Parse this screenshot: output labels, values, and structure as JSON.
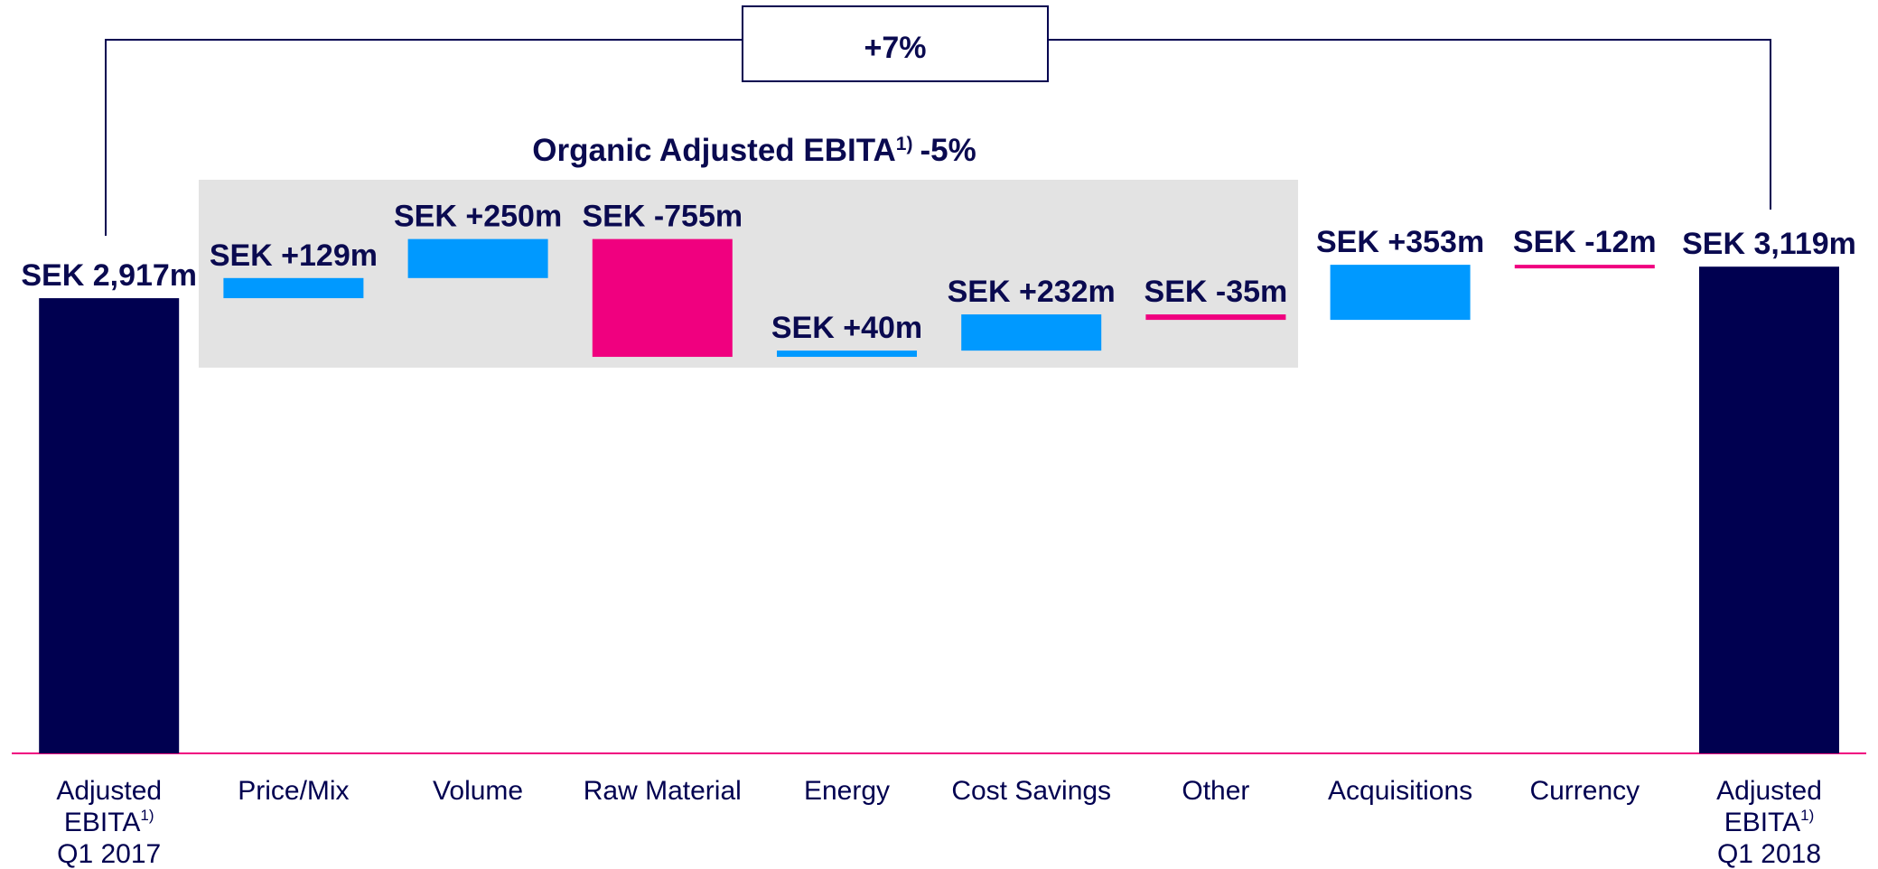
{
  "chart_data": {
    "type": "waterfall",
    "annotations": {
      "total_change": "+7%",
      "organic_label": "Organic Adjusted EBITA",
      "organic_note": "1)",
      "organic_change": "-5%"
    },
    "categories": [
      [
        "Adjusted",
        "EBITA",
        "Q1 2017"
      ],
      [
        "Price/Mix"
      ],
      [
        "Volume"
      ],
      [
        "Raw Material"
      ],
      [
        "Energy"
      ],
      [
        "Cost Savings"
      ],
      [
        "Other"
      ],
      [
        "Acquisitions"
      ],
      [
        "Currency"
      ],
      [
        "Adjusted",
        "EBITA",
        "Q1 2018"
      ]
    ],
    "category_notes": [
      "1)",
      null,
      null,
      null,
      null,
      null,
      null,
      null,
      null,
      "1)"
    ],
    "values": [
      2917,
      129,
      250,
      -755,
      40,
      232,
      -35,
      353,
      -12,
      3119
    ],
    "value_labels": [
      "SEK 2,917m",
      "SEK +129m",
      "SEK +250m",
      "SEK -755m",
      "SEK +40m",
      "SEK +232m",
      "SEK -35m",
      "SEK +353m",
      "SEK -12m",
      "SEK 3,119m"
    ],
    "colors": [
      "#000050",
      "#0099ff",
      "#0099ff",
      "#f0007f",
      "#0099ff",
      "#0099ff",
      "#f0007f",
      "#0099ff",
      "#f0007f",
      "#000050"
    ],
    "ylim": [
      0,
      4000
    ]
  }
}
